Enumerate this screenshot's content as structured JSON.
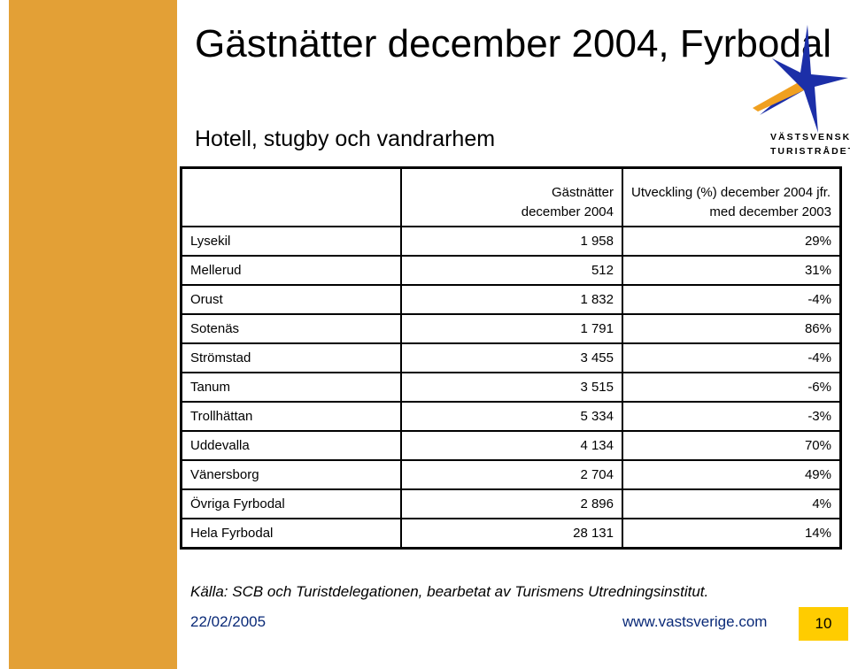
{
  "header": {
    "title": "Gästnätter december 2004, Fyrbodal",
    "subtitle": "Hotell, stugby och vandrarhem"
  },
  "logo": {
    "line1": "VÄSTSVENSKA",
    "line2": "TURISTRÅDET",
    "colors": {
      "star": "#1c2fa8",
      "accent": "#f0a020"
    }
  },
  "table": {
    "headers": {
      "col1": "",
      "col2_line1": "Gästnätter",
      "col2_line2": "december 2004",
      "col3_line1": "Utveckling (%) december 2004 jfr.",
      "col3_line2": "med december 2003"
    },
    "rows": [
      {
        "name": "Lysekil",
        "nights": "1 958",
        "change": "29%"
      },
      {
        "name": "Mellerud",
        "nights": "512",
        "change": "31%"
      },
      {
        "name": "Orust",
        "nights": "1 832",
        "change": "-4%"
      },
      {
        "name": "Sotenäs",
        "nights": "1 791",
        "change": "86%"
      },
      {
        "name": "Strömstad",
        "nights": "3 455",
        "change": "-4%"
      },
      {
        "name": "Tanum",
        "nights": "3 515",
        "change": "-6%"
      },
      {
        "name": "Trollhättan",
        "nights": "5 334",
        "change": "-3%"
      },
      {
        "name": "Uddevalla",
        "nights": "4 134",
        "change": "70%"
      },
      {
        "name": "Vänersborg",
        "nights": "2 704",
        "change": "49%"
      },
      {
        "name": "Övriga Fyrbodal",
        "nights": "2 896",
        "change": "4%"
      },
      {
        "name": "Hela Fyrbodal",
        "nights": "28 131",
        "change": "14%"
      }
    ]
  },
  "source": "Källa: SCB och Turistdelegationen, bearbetat av Turismens Utredningsinstitut.",
  "footer": {
    "date": "22/02/2005",
    "url": "www.vastsverige.com",
    "page": "10"
  },
  "colors": {
    "sidebar": "#E3A036",
    "page_box": "#FFCC00",
    "footer_text": "#0a2a78"
  }
}
